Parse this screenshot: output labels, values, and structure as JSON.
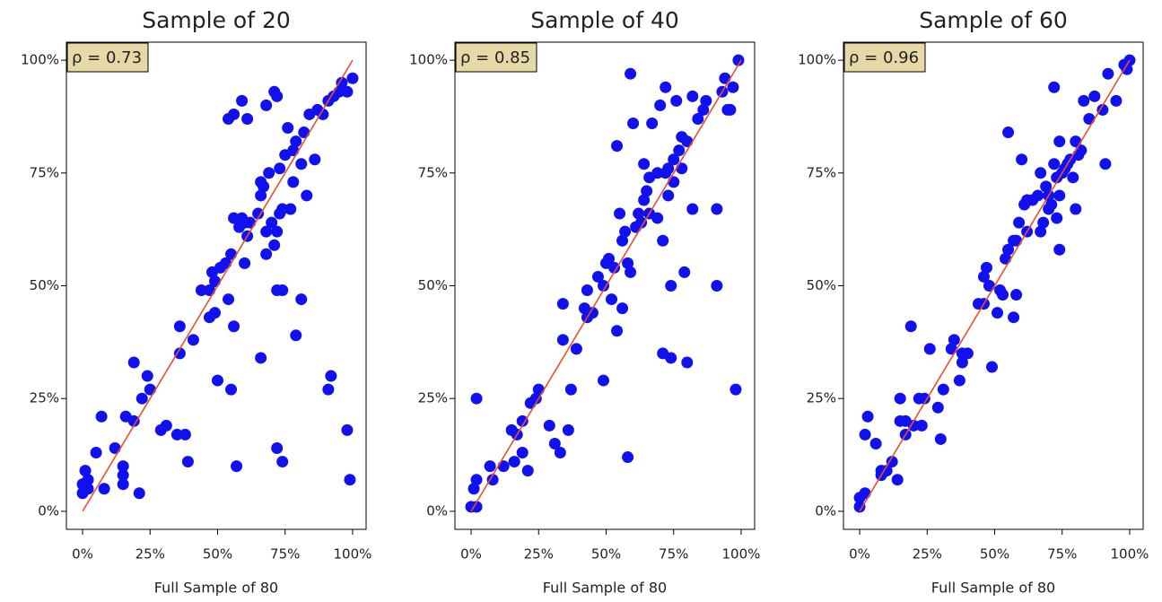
{
  "chart_data": [
    {
      "type": "scatter",
      "title": "Sample of 20",
      "xlabel": "Full Sample of 80",
      "annotation": "ρ = 0.73",
      "color": "#1010f0",
      "x": [
        0,
        0,
        1,
        2,
        2,
        5,
        7,
        8,
        12,
        15,
        15,
        15,
        16,
        19,
        19,
        21,
        22,
        24,
        25,
        29,
        31,
        35,
        36,
        36,
        38,
        39,
        41,
        44,
        47,
        47,
        48,
        49,
        50,
        49,
        51,
        53,
        54,
        54,
        55,
        56,
        56,
        55,
        56,
        57,
        58,
        59,
        59,
        60,
        60,
        61,
        61,
        62,
        65,
        66,
        66,
        66,
        67,
        68,
        68,
        68,
        69,
        70,
        71,
        71,
        72,
        72,
        72,
        72,
        73,
        73,
        74,
        74,
        74,
        75,
        76,
        77,
        78,
        78,
        79,
        79,
        81,
        81,
        82,
        83,
        84,
        86,
        87,
        89,
        91,
        91,
        92,
        93,
        95,
        96,
        98,
        98,
        99,
        100
      ],
      "values": [
        4,
        6,
        9,
        7,
        5,
        13,
        21,
        5,
        14,
        6,
        8,
        10,
        21,
        20,
        33,
        4,
        25,
        30,
        27,
        18,
        19,
        17,
        35,
        41,
        17,
        11,
        38,
        49,
        49,
        43,
        53,
        44,
        29,
        51,
        54,
        55,
        87,
        47,
        27,
        88,
        41,
        57,
        65,
        10,
        63,
        65,
        91,
        55,
        64,
        87,
        61,
        64,
        66,
        34,
        70,
        73,
        72,
        90,
        57,
        62,
        75,
        64,
        59,
        93,
        14,
        49,
        92,
        62,
        66,
        76,
        11,
        49,
        67,
        79,
        85,
        67,
        73,
        80,
        39,
        82,
        47,
        77,
        84,
        70,
        88,
        78,
        89,
        88,
        27,
        91,
        30,
        92,
        93,
        95,
        18,
        93,
        7,
        96
      ],
      "fit_line": {
        "x": [
          0,
          100
        ],
        "values": [
          0,
          100
        ],
        "color": "#e8502a"
      },
      "xlim": [
        -6,
        105
      ],
      "ylim": [
        -4,
        104
      ],
      "xticks": [
        {
          "value": 0,
          "label": "0%"
        },
        {
          "value": 25,
          "label": "25%"
        },
        {
          "value": 50,
          "label": "50%"
        },
        {
          "value": 75,
          "label": "75%"
        },
        {
          "value": 100,
          "label": "100%"
        }
      ],
      "yticks": [
        {
          "value": 0,
          "label": "0%"
        },
        {
          "value": 25,
          "label": "25%"
        },
        {
          "value": 50,
          "label": "50%"
        },
        {
          "value": 75,
          "label": "75%"
        },
        {
          "value": 100,
          "label": "100%"
        }
      ]
    },
    {
      "type": "scatter",
      "title": "Sample of 40",
      "xlabel": "Full Sample of 80",
      "annotation": "ρ = 0.85",
      "color": "#1010f0",
      "x": [
        0,
        1,
        2,
        2,
        2,
        7,
        8,
        12,
        15,
        16,
        17,
        19,
        19,
        21,
        22,
        24,
        25,
        29,
        31,
        33,
        34,
        34,
        36,
        37,
        39,
        42,
        43,
        43,
        45,
        47,
        49,
        49,
        50,
        51,
        52,
        53,
        54,
        54,
        55,
        56,
        56,
        57,
        58,
        58,
        59,
        59,
        60,
        61,
        62,
        63,
        64,
        64,
        65,
        66,
        66,
        67,
        69,
        69,
        70,
        71,
        71,
        72,
        72,
        73,
        73,
        74,
        74,
        75,
        75,
        76,
        77,
        78,
        78,
        79,
        80,
        80,
        82,
        82,
        84,
        86,
        87,
        91,
        91,
        93,
        94,
        95,
        96,
        97,
        98,
        99
      ],
      "values": [
        1,
        5,
        1,
        7,
        25,
        10,
        7,
        10,
        18,
        11,
        17,
        13,
        20,
        9,
        24,
        25,
        27,
        19,
        15,
        13,
        46,
        38,
        18,
        27,
        36,
        45,
        43,
        49,
        44,
        52,
        29,
        50,
        55,
        56,
        47,
        54,
        81,
        40,
        66,
        45,
        60,
        62,
        12,
        55,
        97,
        53,
        86,
        63,
        66,
        64,
        69,
        77,
        71,
        74,
        66,
        86,
        75,
        65,
        90,
        60,
        35,
        94,
        75,
        70,
        76,
        34,
        50,
        78,
        73,
        91,
        80,
        83,
        76,
        53,
        33,
        82,
        67,
        92,
        87,
        89,
        91,
        67,
        50,
        93,
        96,
        89,
        89,
        94,
        27,
        100
      ],
      "fit_line": {
        "x": [
          0,
          100
        ],
        "values": [
          0,
          100
        ],
        "color": "#e8502a"
      },
      "xlim": [
        -6,
        105
      ],
      "ylim": [
        -4,
        104
      ],
      "xticks": [
        {
          "value": 0,
          "label": "0%"
        },
        {
          "value": 25,
          "label": "25%"
        },
        {
          "value": 50,
          "label": "50%"
        },
        {
          "value": 75,
          "label": "75%"
        },
        {
          "value": 100,
          "label": "100%"
        }
      ],
      "yticks": [
        {
          "value": 0,
          "label": "0%"
        },
        {
          "value": 25,
          "label": "25%"
        },
        {
          "value": 50,
          "label": "50%"
        },
        {
          "value": 75,
          "label": "75%"
        },
        {
          "value": 100,
          "label": "100%"
        }
      ]
    },
    {
      "type": "scatter",
      "title": "Sample of 60",
      "xlabel": "Full Sample of 80",
      "annotation": "ρ = 0.96",
      "color": "#1010f0",
      "x": [
        0,
        0,
        2,
        2,
        3,
        6,
        8,
        8,
        10,
        12,
        14,
        15,
        15,
        17,
        17,
        19,
        20,
        22,
        23,
        24,
        26,
        29,
        30,
        31,
        34,
        35,
        37,
        38,
        38,
        40,
        44,
        46,
        46,
        47,
        48,
        49,
        51,
        52,
        53,
        54,
        55,
        55,
        57,
        57,
        58,
        58,
        59,
        60,
        61,
        62,
        62,
        64,
        66,
        67,
        67,
        68,
        69,
        70,
        70,
        71,
        72,
        72,
        73,
        73,
        74,
        74,
        74,
        75,
        76,
        77,
        78,
        79,
        80,
        80,
        81,
        82,
        83,
        85,
        87,
        90,
        91,
        92,
        95,
        98,
        99,
        100
      ],
      "values": [
        1,
        3,
        4,
        17,
        21,
        15,
        8,
        9,
        9,
        11,
        7,
        20,
        25,
        17,
        20,
        41,
        19,
        25,
        19,
        25,
        36,
        23,
        16,
        27,
        36,
        38,
        29,
        33,
        35,
        35,
        46,
        46,
        52,
        54,
        50,
        32,
        44,
        49,
        48,
        56,
        84,
        58,
        60,
        43,
        48,
        60,
        64,
        78,
        68,
        62,
        69,
        69,
        70,
        75,
        62,
        64,
        72,
        67,
        70,
        68,
        77,
        94,
        74,
        65,
        58,
        82,
        70,
        75,
        76,
        77,
        78,
        74,
        82,
        67,
        79,
        80,
        91,
        87,
        92,
        89,
        77,
        97,
        91,
        99,
        98,
        100
      ],
      "fit_line": {
        "x": [
          0,
          100
        ],
        "values": [
          0,
          100
        ],
        "color": "#e8502a"
      },
      "xlim": [
        -6,
        105
      ],
      "ylim": [
        -4,
        104
      ],
      "xticks": [
        {
          "value": 0,
          "label": "0%"
        },
        {
          "value": 25,
          "label": "25%"
        },
        {
          "value": 50,
          "label": "50%"
        },
        {
          "value": 75,
          "label": "75%"
        },
        {
          "value": 100,
          "label": "100%"
        }
      ],
      "yticks": [
        {
          "value": 0,
          "label": "0%"
        },
        {
          "value": 25,
          "label": "25%"
        },
        {
          "value": 50,
          "label": "50%"
        },
        {
          "value": 75,
          "label": "75%"
        },
        {
          "value": 100,
          "label": "100%"
        }
      ]
    }
  ]
}
